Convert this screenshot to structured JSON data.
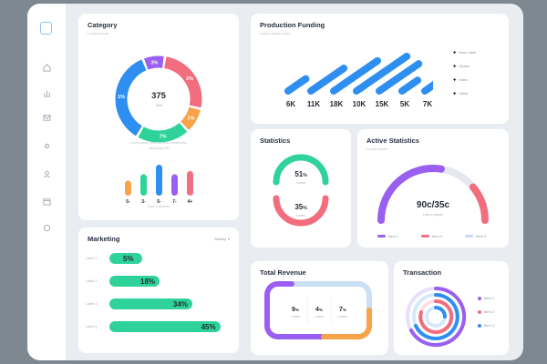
{
  "colors": {
    "blue": "#2f8ff0",
    "green": "#2fd39a",
    "orange": "#f7a34a",
    "pink": "#f26d7d",
    "purple": "#9a5ff0",
    "light_blue": "#9cc8f0",
    "grey_track": "#e4e8ef"
  },
  "sidebar": {
    "icons": [
      "logo-icon",
      "home-icon",
      "chart-icon",
      "mail-icon",
      "settings-icon",
      "user-icon",
      "calendar-icon",
      "help-icon"
    ]
  },
  "category": {
    "title": "Category",
    "subtitle": "Lorem ipsum",
    "center_value": "375",
    "center_caption": "Total",
    "donut_segments": [
      {
        "label": "3%",
        "value": 22,
        "color": "#f26d7d"
      },
      {
        "label": "2%",
        "value": 8,
        "color": "#f7a34a"
      },
      {
        "label": "7%",
        "value": 17,
        "color": "#2fd39a"
      },
      {
        "label": "1%",
        "value": 30,
        "color": "#2f8ff0"
      },
      {
        "label": "3%",
        "value": 7,
        "color": "#9a5ff0"
      }
    ],
    "caption_line1": "Lorem ipsum dolor sit amet consectetur",
    "caption_line2": "adipiscing elit",
    "mini_bars": [
      {
        "label": "5-",
        "value": 3,
        "color": "#f7a34a"
      },
      {
        "label": "3-",
        "value": 5,
        "color": "#2fd39a"
      },
      {
        "label": "5-",
        "value": 8,
        "color": "#2f8ff0"
      },
      {
        "label": "7-",
        "value": 5,
        "color": "#9a5ff0"
      },
      {
        "label": "4+",
        "value": 6,
        "color": "#f26d7d"
      }
    ],
    "mini_caption": "Data 1 Monthly"
  },
  "production": {
    "title": "Production Funding",
    "subtitle": "Lorem ipsum dolor",
    "values": [
      {
        "label": "6K",
        "level": 0.2
      },
      {
        "label": "11K",
        "level": 0.55
      },
      {
        "label": "18K",
        "level": 0.8
      },
      {
        "label": "10K",
        "level": 0.95
      },
      {
        "label": "15K",
        "level": 0.7
      },
      {
        "label": "5K",
        "level": 0.15
      },
      {
        "label": "7K",
        "level": 0.2
      }
    ],
    "legend": [
      "Item Label",
      "Option",
      "Index",
      "Value"
    ]
  },
  "statistics": {
    "title": "Statistics",
    "top_value": "51",
    "top_unit": "%",
    "top_caption": "Lorem",
    "bottom_value": "35",
    "bottom_unit": "%",
    "bottom_caption": "Lorem"
  },
  "active": {
    "title": "Active Statistics",
    "subtitle": "Lorem ipsum",
    "value_left": "90c",
    "value_right": "35c",
    "separator": "/",
    "caption": "Lorem ipsum",
    "gauge_fraction": 0.55,
    "legend": [
      "Item 1",
      "Item 2",
      "Item 3"
    ]
  },
  "marketing": {
    "title": "Marketing",
    "dropdown": "Weekly",
    "rows": [
      {
        "label": "Label 1",
        "value": "5%",
        "fraction": 0.23
      },
      {
        "label": "Label 2",
        "value": "18%",
        "fraction": 0.43
      },
      {
        "label": "Label 3",
        "value": "34%",
        "fraction": 0.71
      },
      {
        "label": "Label 4",
        "value": "45%",
        "fraction": 0.95
      }
    ]
  },
  "revenue": {
    "title": "Total Revenue",
    "stats": [
      {
        "value": "9",
        "unit": "%",
        "caption": "Lorem"
      },
      {
        "value": "4",
        "unit": "%",
        "caption": "Lorem"
      },
      {
        "value": "7",
        "unit": "%",
        "caption": "Lorem"
      }
    ]
  },
  "transaction": {
    "title": "Transaction",
    "legend": [
      "Item 1",
      "Item 2",
      "Item 3"
    ]
  }
}
